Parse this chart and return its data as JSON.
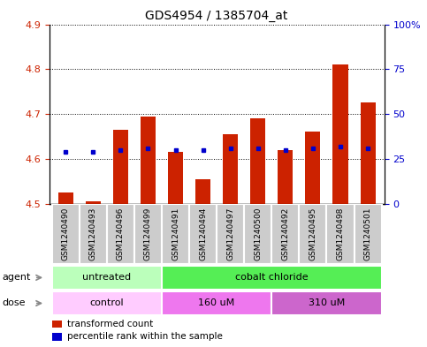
{
  "title": "GDS4954 / 1385704_at",
  "samples": [
    "GSM1240490",
    "GSM1240493",
    "GSM1240496",
    "GSM1240499",
    "GSM1240491",
    "GSM1240494",
    "GSM1240497",
    "GSM1240500",
    "GSM1240492",
    "GSM1240495",
    "GSM1240498",
    "GSM1240501"
  ],
  "transformed_counts": [
    4.525,
    4.505,
    4.665,
    4.695,
    4.615,
    4.555,
    4.655,
    4.69,
    4.62,
    4.66,
    4.81,
    4.725
  ],
  "percentile_ranks": [
    29,
    29,
    30,
    31,
    30,
    30,
    31,
    31,
    30,
    31,
    32,
    31
  ],
  "bar_baseline": 4.5,
  "ylim_left": [
    4.5,
    4.9
  ],
  "ylim_right": [
    0,
    100
  ],
  "yticks_left": [
    4.5,
    4.6,
    4.7,
    4.8,
    4.9
  ],
  "yticks_right": [
    0,
    25,
    50,
    75,
    100
  ],
  "ytick_labels_right": [
    "0",
    "25",
    "50",
    "75",
    "100%"
  ],
  "bar_color": "#cc2200",
  "dot_color": "#0000cc",
  "agent_groups": [
    {
      "label": "untreated",
      "start": 0,
      "end": 4,
      "color": "#bbffbb"
    },
    {
      "label": "cobalt chloride",
      "start": 4,
      "end": 12,
      "color": "#55ee55"
    }
  ],
  "dose_groups": [
    {
      "label": "control",
      "start": 0,
      "end": 4,
      "color": "#ffccff"
    },
    {
      "label": "160 uM",
      "start": 4,
      "end": 8,
      "color": "#ee77ee"
    },
    {
      "label": "310 uM",
      "start": 8,
      "end": 12,
      "color": "#cc66cc"
    }
  ],
  "legend_bar_label": "transformed count",
  "legend_dot_label": "percentile rank within the sample",
  "agent_label": "agent",
  "dose_label": "dose",
  "bg_color": "#ffffff",
  "plot_bg_color": "#ffffff",
  "tick_label_color_left": "#cc2200",
  "tick_label_color_right": "#0000cc",
  "sample_box_color": "#cccccc",
  "arrow_color": "#888888"
}
